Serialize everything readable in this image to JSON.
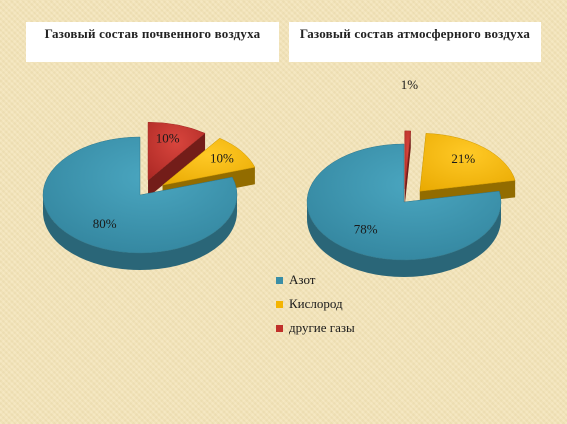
{
  "chart_data": [
    {
      "type": "pie",
      "title": "Газовый состав почвенного воздуха",
      "categories": [
        "Азот",
        "Кислород",
        "другие газы"
      ],
      "values": [
        80,
        10,
        10
      ],
      "data_labels": [
        "80%",
        "10%",
        "10%"
      ],
      "legend_position": "bottom"
    },
    {
      "type": "pie",
      "title": "Газовый состав атмосферного воздуха",
      "categories": [
        "Азот",
        "Кислород",
        "другие газы"
      ],
      "values": [
        78,
        21,
        1
      ],
      "data_labels": [
        "78%",
        "21%",
        "1%"
      ],
      "legend_position": "bottom"
    }
  ],
  "legend": [
    {
      "label": "Азот",
      "color": "#3a8ea6"
    },
    {
      "label": "Кислород",
      "color": "#f4b400"
    },
    {
      "label": "другие газы",
      "color": "#c0302a"
    }
  ],
  "colors": {
    "nitrogen": "#3a8ea6",
    "oxygen": "#f4b400",
    "other": "#c0302a"
  }
}
